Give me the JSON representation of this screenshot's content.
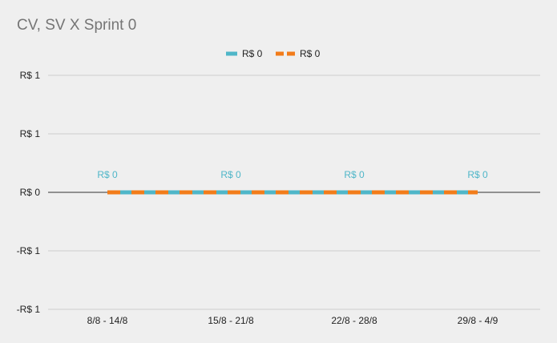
{
  "chart_data": {
    "type": "line",
    "title": "CV, SV X Sprint 0",
    "categories": [
      "8/8 - 14/8",
      "15/8 - 21/8",
      "22/8 - 28/8",
      "29/8 - 4/9"
    ],
    "series": [
      {
        "name": "R$ 0",
        "values": [
          0,
          0,
          0,
          0
        ],
        "color": "#4fb6c8",
        "style": "solid",
        "data_labels": [
          "R$ 0",
          "R$ 0",
          "R$ 0",
          "R$ 0"
        ]
      },
      {
        "name": "R$ 0",
        "values": [
          0,
          0,
          0,
          0
        ],
        "color": "#f27c1a",
        "style": "dashed"
      }
    ],
    "y_ticks": [
      {
        "value": 1,
        "label": "R$ 1"
      },
      {
        "value": 0.5,
        "label": "R$ 1"
      },
      {
        "value": 0,
        "label": "R$ 0"
      },
      {
        "value": -0.5,
        "label": "-R$ 1"
      },
      {
        "value": -1,
        "label": "-R$ 1"
      }
    ],
    "ylim": [
      -1,
      1
    ],
    "xlabel": "",
    "ylabel": "",
    "grid": true,
    "legend_position": "top",
    "colors": {
      "background": "#efefef",
      "grid": "#cccccc",
      "zero_line": "#333333",
      "title": "#757575"
    }
  }
}
